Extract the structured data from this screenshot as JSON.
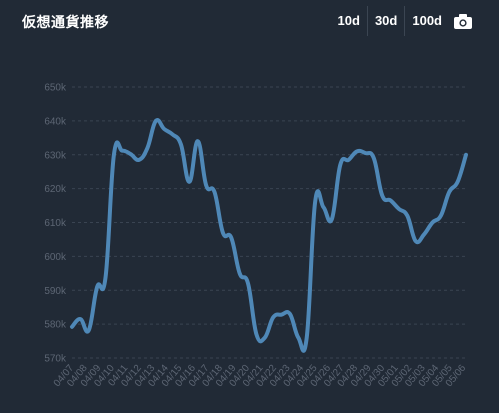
{
  "header": {
    "title": "仮想通貨推移",
    "ranges": [
      "10d",
      "30d",
      "100d"
    ],
    "screenshot_icon": "camera-icon"
  },
  "colors": {
    "background": "#212a36",
    "line": "#4f88b7",
    "grid": "#3a4452",
    "tick_text": "#5d6674",
    "title_text": "#ffffff"
  },
  "chart_data": {
    "type": "line",
    "title": "仮想通貨推移",
    "xlabel": "",
    "ylabel": "",
    "grid": true,
    "y_ticks": [
      570000,
      580000,
      590000,
      600000,
      610000,
      620000,
      630000,
      640000,
      650000
    ],
    "y_tick_labels": [
      "570k",
      "580k",
      "590k",
      "600k",
      "610k",
      "620k",
      "630k",
      "640k",
      "650k"
    ],
    "ylim": [
      566000,
      655000
    ],
    "x_tick_labels": [
      "04/07",
      "04/08",
      "04/09",
      "04/10",
      "04/11",
      "04/12",
      "04/13",
      "04/14",
      "04/15",
      "04/16",
      "04/17",
      "04/18",
      "04/19",
      "04/20",
      "04/21",
      "04/22",
      "04/23",
      "04/24",
      "04/25",
      "04/26",
      "04/27",
      "04/28",
      "04/29",
      "04/30",
      "05/01",
      "05/02",
      "05/03",
      "05/04",
      "05/05",
      "05/06"
    ],
    "series": [
      {
        "values": [
          579200,
          581500,
          578200,
          591000,
          593800,
          630000,
          631200,
          630200,
          628500,
          632000,
          640000,
          637600,
          636000,
          633000,
          622000,
          634000,
          621000,
          619000,
          607000,
          605500,
          595000,
          592000,
          577000,
          576000,
          582000,
          582800,
          583000,
          576000,
          576000,
          616000,
          614500,
          611000,
          627000,
          628500,
          631000,
          630500,
          629000,
          618000,
          616500,
          614000,
          612000,
          604500,
          606500,
          610000,
          612000,
          619000,
          622000,
          630000
        ]
      }
    ]
  }
}
